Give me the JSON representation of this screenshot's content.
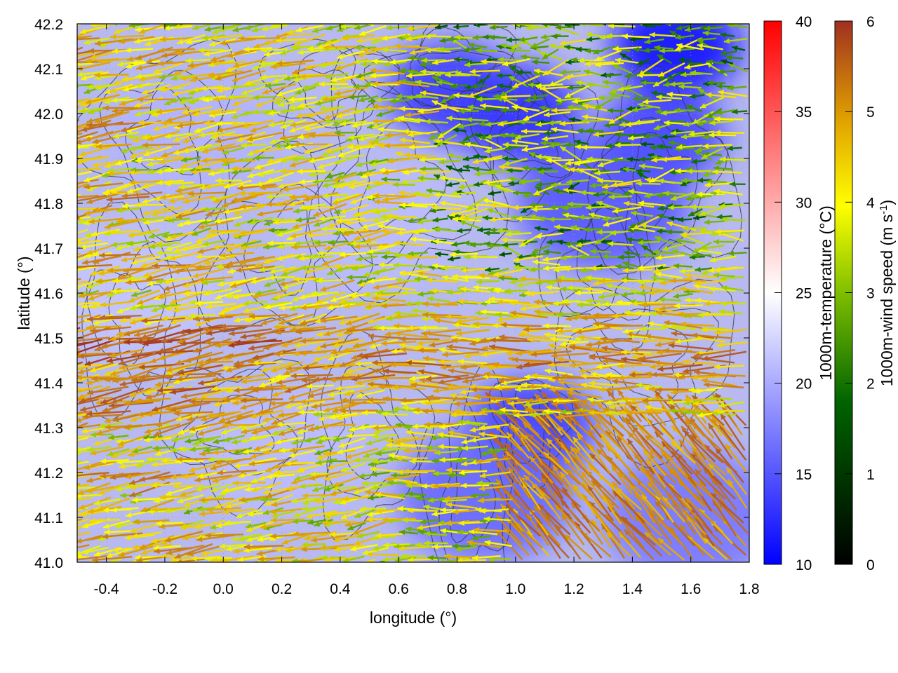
{
  "chart_data": {
    "type": "heatmap",
    "title": "",
    "xlabel": "longitude (°)",
    "ylabel": "latitude (°)",
    "xlim": [
      -0.5,
      1.8
    ],
    "ylim": [
      41.0,
      42.2
    ],
    "x_ticks": [
      "-0.4",
      "-0.2",
      "0.0",
      "0.2",
      "0.4",
      "0.6",
      "0.8",
      "1.0",
      "1.2",
      "1.4",
      "1.6",
      "1.8"
    ],
    "x_tick_values": [
      -0.4,
      -0.2,
      0.0,
      0.2,
      0.4,
      0.6,
      0.8,
      1.0,
      1.2,
      1.4,
      1.6,
      1.8
    ],
    "y_ticks": [
      "41.0",
      "41.1",
      "41.2",
      "41.3",
      "41.4",
      "41.5",
      "41.6",
      "41.7",
      "41.8",
      "41.9",
      "42.0",
      "42.1",
      "42.2"
    ],
    "y_tick_values": [
      41.0,
      41.1,
      41.2,
      41.3,
      41.4,
      41.5,
      41.6,
      41.7,
      41.8,
      41.9,
      42.0,
      42.1,
      42.2
    ],
    "grid": true,
    "temperature_colorbar": {
      "label": "1000m-temperature (°C)",
      "range": [
        10,
        40
      ],
      "ticks": [
        "10",
        "15",
        "20",
        "25",
        "30",
        "35",
        "40"
      ],
      "tick_values": [
        10,
        15,
        20,
        25,
        30,
        35,
        40
      ],
      "colors": [
        "#0000ff",
        "#ffffff",
        "#ff0000"
      ]
    },
    "wind_colorbar": {
      "label_main": "1000m-wind speed (m s",
      "label_sup": "-1",
      "label_end": ")",
      "range": [
        0,
        6
      ],
      "ticks": [
        "0",
        "1",
        "2",
        "3",
        "4",
        "5",
        "6"
      ],
      "tick_values": [
        0,
        1,
        2,
        3,
        4,
        5,
        6
      ],
      "colors": [
        "#000000",
        "#006400",
        "#7fbf00",
        "#ffff00",
        "#e0a000",
        "#c07020",
        "#a03020"
      ]
    },
    "temperature_field_note": "mostly 15-22 °C, coldest (~10-12 °C) in the north-east",
    "temperature_anomalies": [
      {
        "lon": 1.55,
        "lat": 42.15,
        "t": 10.5
      },
      {
        "lon": 1.0,
        "lat": 42.0,
        "t": 12.5
      },
      {
        "lon": 0.78,
        "lat": 42.05,
        "t": 13.5
      },
      {
        "lon": 1.05,
        "lat": 41.3,
        "t": 13.5
      },
      {
        "lon": 1.5,
        "lat": 41.95,
        "t": 14.0
      },
      {
        "lon": 1.3,
        "lat": 41.8,
        "t": 15.0
      },
      {
        "lon": 0.9,
        "lat": 41.15,
        "t": 16.0
      },
      {
        "lon": 1.6,
        "lat": 41.1,
        "t": 17.0
      },
      {
        "lon": -0.3,
        "lat": 41.6,
        "t": 21.5
      },
      {
        "lon": 0.2,
        "lat": 41.25,
        "t": 21.0
      },
      {
        "lon": 0.5,
        "lat": 41.75,
        "t": 21.0
      },
      {
        "lon": -0.1,
        "lat": 41.95,
        "t": 20.5
      }
    ],
    "wind_regimes": [
      {
        "region": "west (-0.5 to 0.4)",
        "direction_from": "east",
        "speed_range": [
          2.5,
          6
        ]
      },
      {
        "region": "band 41.35-41.55 lat",
        "direction_from": "east",
        "speed_range": [
          4,
          6
        ]
      },
      {
        "region": "north-east (>0.8 lon, >41.7 lat)",
        "direction_from": "east",
        "speed_range": [
          0.5,
          3
        ]
      },
      {
        "region": "south-east (>1.0 lon, <41.3 lat)",
        "direction_from": "south-east",
        "speed_range": [
          3.5,
          5.5
        ]
      }
    ]
  }
}
